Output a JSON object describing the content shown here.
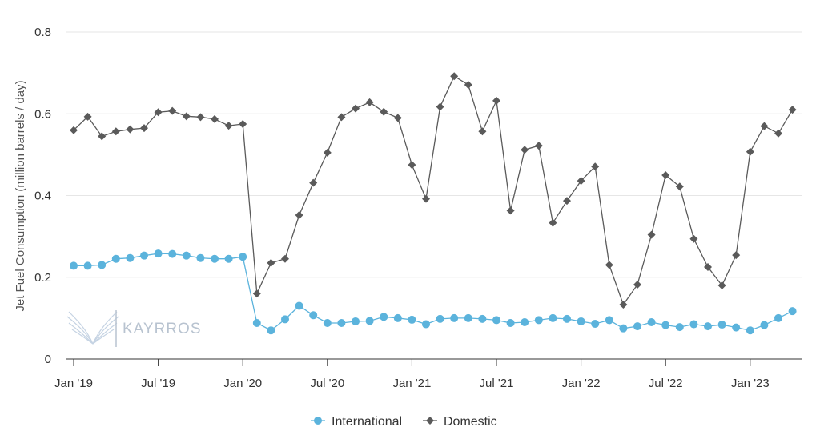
{
  "chart_data": {
    "type": "line",
    "ylabel": "Jet Fuel Consumption (million barrels / day)",
    "ylim": [
      0,
      0.8
    ],
    "y_ticks": [
      0,
      0.2,
      0.4,
      0.6,
      0.8
    ],
    "y_tick_labels": [
      "0",
      "0.2",
      "0.4",
      "0.6",
      "0.8"
    ],
    "x_ticks": [
      "Jan '19",
      "Jul '19",
      "Jan '20",
      "Jul '20",
      "Jan '21",
      "Jul '21",
      "Jan '22",
      "Jul '22",
      "Jan '23"
    ],
    "x": [
      "2019-01",
      "2019-02",
      "2019-03",
      "2019-04",
      "2019-05",
      "2019-06",
      "2019-07",
      "2019-08",
      "2019-09",
      "2019-10",
      "2019-11",
      "2019-12",
      "2020-01",
      "2020-02",
      "2020-03",
      "2020-04",
      "2020-05",
      "2020-06",
      "2020-07",
      "2020-08",
      "2020-09",
      "2020-10",
      "2020-11",
      "2020-12",
      "2021-01",
      "2021-02",
      "2021-03",
      "2021-04",
      "2021-05",
      "2021-06",
      "2021-07",
      "2021-08",
      "2021-09",
      "2021-10",
      "2021-11",
      "2021-12",
      "2022-01",
      "2022-02",
      "2022-03",
      "2022-04",
      "2022-05",
      "2022-06",
      "2022-07",
      "2022-08",
      "2022-09",
      "2022-10",
      "2022-11",
      "2022-12",
      "2023-01",
      "2023-02",
      "2023-03",
      "2023-04"
    ],
    "series": [
      {
        "name": "International",
        "color": "#5bb3dc",
        "marker": "circle",
        "values": [
          0.228,
          0.228,
          0.23,
          0.245,
          0.247,
          0.253,
          0.258,
          0.257,
          0.253,
          0.247,
          0.245,
          0.245,
          0.25,
          0.088,
          0.07,
          0.097,
          0.13,
          0.107,
          0.088,
          0.088,
          0.092,
          0.093,
          0.103,
          0.1,
          0.096,
          0.085,
          0.098,
          0.1,
          0.1,
          0.098,
          0.095,
          0.088,
          0.09,
          0.095,
          0.1,
          0.098,
          0.092,
          0.086,
          0.095,
          0.075,
          0.08,
          0.09,
          0.083,
          0.078,
          0.085,
          0.08,
          0.084,
          0.077,
          0.07,
          0.083,
          0.1,
          0.117
        ]
      },
      {
        "name": "Domestic",
        "color": "#5a5a5a",
        "marker": "diamond",
        "values": [
          0.56,
          0.593,
          0.545,
          0.557,
          0.562,
          0.565,
          0.604,
          0.607,
          0.594,
          0.592,
          0.587,
          0.571,
          0.575,
          0.16,
          0.235,
          0.245,
          0.352,
          0.431,
          0.505,
          0.592,
          0.613,
          0.628,
          0.605,
          0.59,
          0.475,
          0.392,
          0.617,
          0.692,
          0.671,
          0.557,
          0.632,
          0.363,
          0.512,
          0.522,
          0.333,
          0.387,
          0.436,
          0.471,
          0.23,
          0.133,
          0.182,
          0.304,
          0.45,
          0.422,
          0.294,
          0.225,
          0.18,
          0.254,
          0.507,
          0.57,
          0.552,
          0.61
        ]
      }
    ],
    "grid": true,
    "legend": "bottom-center"
  },
  "watermark": {
    "text": "KAYRROS",
    "icon": "kayrros-wings-logo"
  }
}
